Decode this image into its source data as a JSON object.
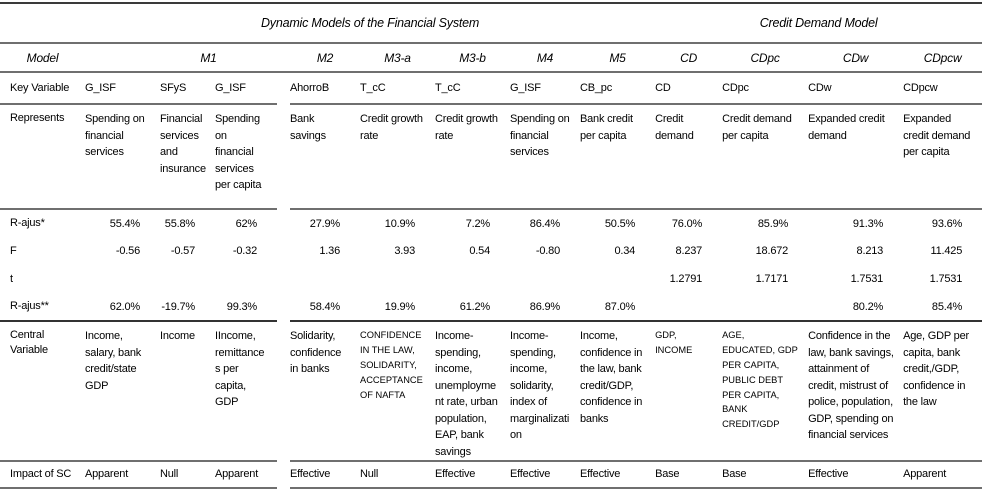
{
  "header": {
    "groups": [
      {
        "label": "Dynamic Models of the Financial System",
        "span": 8
      },
      {
        "label": "Credit Demand Model",
        "span": 4
      }
    ],
    "model_row_label": "Model",
    "models": [
      {
        "label": "M1",
        "span": 3
      },
      {
        "label": "M2",
        "span": 1
      },
      {
        "label": "M3-a",
        "span": 1
      },
      {
        "label": "M3-b",
        "span": 1
      },
      {
        "label": "M4",
        "span": 1
      },
      {
        "label": "M5",
        "span": 1
      },
      {
        "label": "CD",
        "span": 1
      },
      {
        "label": "CDpc",
        "span": 1
      },
      {
        "label": "CDw",
        "span": 1
      },
      {
        "label": "CDpcw",
        "span": 1
      }
    ]
  },
  "rows": [
    {
      "label": "Key Variable",
      "cells": [
        "G_ISF",
        "SFyS",
        "G_ISF",
        "AhorroB",
        "T_cC",
        "T_cC",
        "G_ISF",
        "CB_pc",
        "CD",
        "CDpc",
        "CDw",
        "CDpcw"
      ]
    },
    {
      "label": "Represents",
      "cells": [
        "Spending on financial services",
        "Financial services and insurance",
        "Spending on financial services per capita",
        "Bank savings",
        "Credit growth rate",
        "Credit growth rate",
        "Spending on financial services",
        "Bank credit per capita",
        "Credit demand",
        "Credit demand per capita",
        "Expanded credit demand",
        "Expanded credit demand per capita"
      ]
    },
    {
      "label": "R-ajus*",
      "cells": [
        "55.4%",
        "55.8%",
        "62%",
        "27.9%",
        "10.9%",
        "7.2%",
        "86.4%",
        "50.5%",
        "76.0%",
        "85.9%",
        "91.3%",
        "93.6%"
      ]
    },
    {
      "label": "F",
      "cells": [
        "-0.56",
        "-0.57",
        "-0.32",
        "1.36",
        "3.93",
        "0.54",
        "-0.80",
        "0.34",
        "8.237",
        "18.672",
        "8.213",
        "11.425"
      ]
    },
    {
      "label": "t",
      "cells": [
        "",
        "",
        "",
        "",
        "",
        "",
        "",
        "",
        "1.2791",
        "1.7171",
        "1.7531",
        "1.7531"
      ]
    },
    {
      "label": "R-ajus**",
      "cells": [
        "62.0%",
        "-19.7%",
        "99.3%",
        "58.4%",
        "19.9%",
        "61.2%",
        "86.9%",
        "87.0%",
        "",
        "",
        "80.2%",
        "85.4%"
      ]
    },
    {
      "label": "Central Variable",
      "cells": [
        "Income, salary, bank credit/state GDP",
        "Income",
        "IIncome, remittances per capita, GDP",
        "Solidarity, confidence in banks",
        "CONFIDENCE IN THE LAW, SOLIDARITY, ACCEPTANCE OF NAFTA",
        "Income-spending, income, unemployment rate, urban population, EAP, bank savings",
        "Income-spending, income, solidarity, index of marginalization",
        "Income, confidence in the law, bank credit/GDP, confidence in banks",
        "GDP, INCOME",
        "AGE, EDUCATED, GDP PER CAPITA, PUBLIC DEBT PER CAPITA, BANK CREDIT/GDP",
        "Confidence in the law, bank savings, attainment of credit, mistrust of police, population, GDP, spending on financial services",
        "Age, GDP per capita, bank credit,/GDP, confidence in the law"
      ]
    },
    {
      "label": "Impact of SC",
      "cells": [
        "Apparent",
        "Null",
        "Apparent",
        "Effective",
        "Null",
        "Effective",
        "Effective",
        "Effective",
        "Base",
        "Base",
        "Effective",
        "Apparent"
      ]
    }
  ]
}
